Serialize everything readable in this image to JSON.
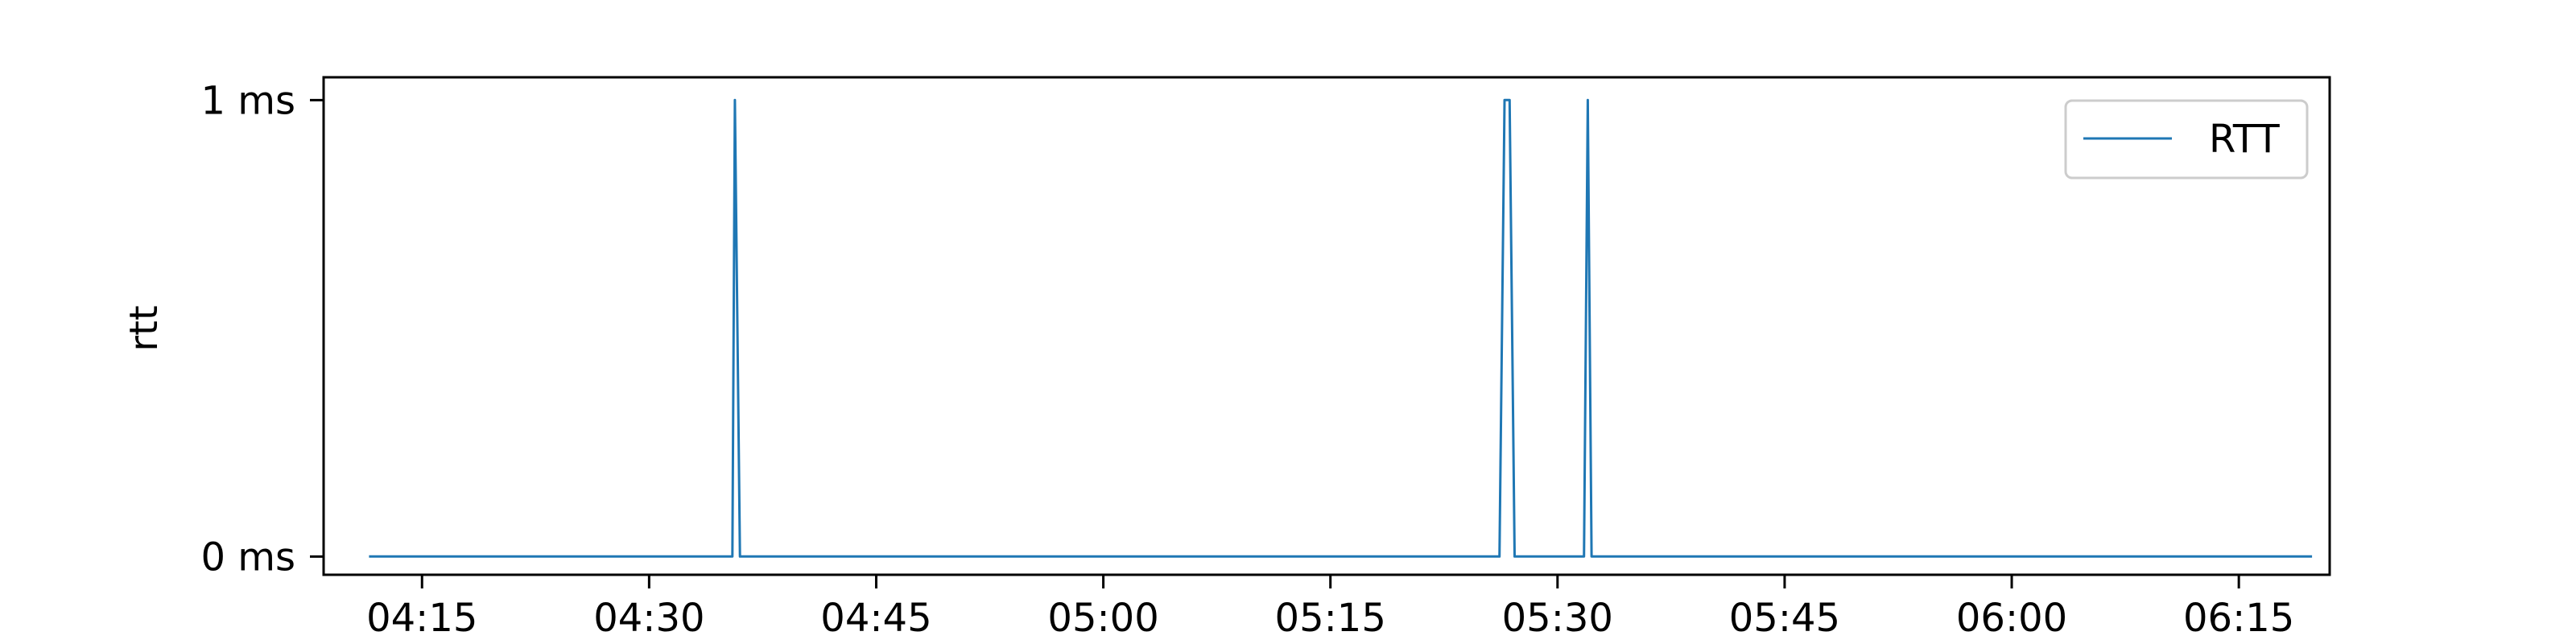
{
  "chart_data": {
    "type": "line",
    "title": "",
    "xlabel": "",
    "ylabel": "rtt",
    "xlim": [
      "04:08:30",
      "06:21:00"
    ],
    "ylim": [
      -0.04,
      1.05
    ],
    "y_ticks": [
      {
        "value": 0,
        "label": "0 ms"
      },
      {
        "value": 1,
        "label": "1 ms"
      }
    ],
    "x_ticks": [
      "04:15",
      "04:30",
      "04:45",
      "05:00",
      "05:15",
      "05:30",
      "05:45",
      "06:00",
      "06:15"
    ],
    "grid": false,
    "legend": {
      "position": "top-right"
    },
    "series": [
      {
        "name": "RTT",
        "color": "#1f77b4",
        "x": [
          "04:11:30",
          "04:35:30",
          "04:35:40",
          "04:36:00",
          "05:26:10",
          "05:26:30",
          "05:26:50",
          "05:27:10",
          "05:31:45",
          "05:32:00",
          "05:32:15",
          "06:19:50"
        ],
        "y": [
          0,
          0,
          1,
          0,
          0,
          1,
          1,
          0,
          0,
          1,
          0,
          0
        ]
      }
    ]
  }
}
